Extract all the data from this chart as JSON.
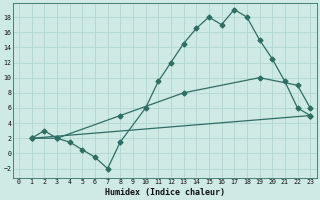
{
  "xlabel": "Humidex (Indice chaleur)",
  "xlim": [
    -0.5,
    23.5
  ],
  "ylim": [
    -3.2,
    19.8
  ],
  "bg_color": "#cfe9e5",
  "grid_color": "#b0d8d2",
  "line_color": "#2e6e65",
  "xticks": [
    0,
    1,
    2,
    3,
    4,
    5,
    6,
    7,
    8,
    9,
    10,
    11,
    12,
    13,
    14,
    15,
    16,
    17,
    18,
    19,
    20,
    21,
    22,
    23
  ],
  "yticks": [
    -2,
    0,
    2,
    4,
    6,
    8,
    10,
    12,
    14,
    16,
    18
  ],
  "line1_x": [
    1,
    2,
    3,
    4,
    5,
    6,
    7,
    8,
    10,
    11,
    12,
    13,
    14,
    15,
    16,
    17,
    18,
    19,
    20,
    21,
    22,
    23
  ],
  "line1_y": [
    2,
    3,
    2,
    1.5,
    0.5,
    -0.5,
    -2,
    1.5,
    6,
    9.5,
    12,
    14.5,
    16.5,
    18,
    17,
    19,
    18,
    15,
    12.5,
    9.5,
    6,
    5
  ],
  "line2_x": [
    1,
    3,
    8,
    13,
    19,
    22,
    23
  ],
  "line2_y": [
    2,
    2,
    5,
    8,
    10,
    9,
    6
  ],
  "line3_x": [
    1,
    23
  ],
  "line3_y": [
    2,
    5
  ],
  "markersize": 2.5,
  "linewidth": 0.9
}
